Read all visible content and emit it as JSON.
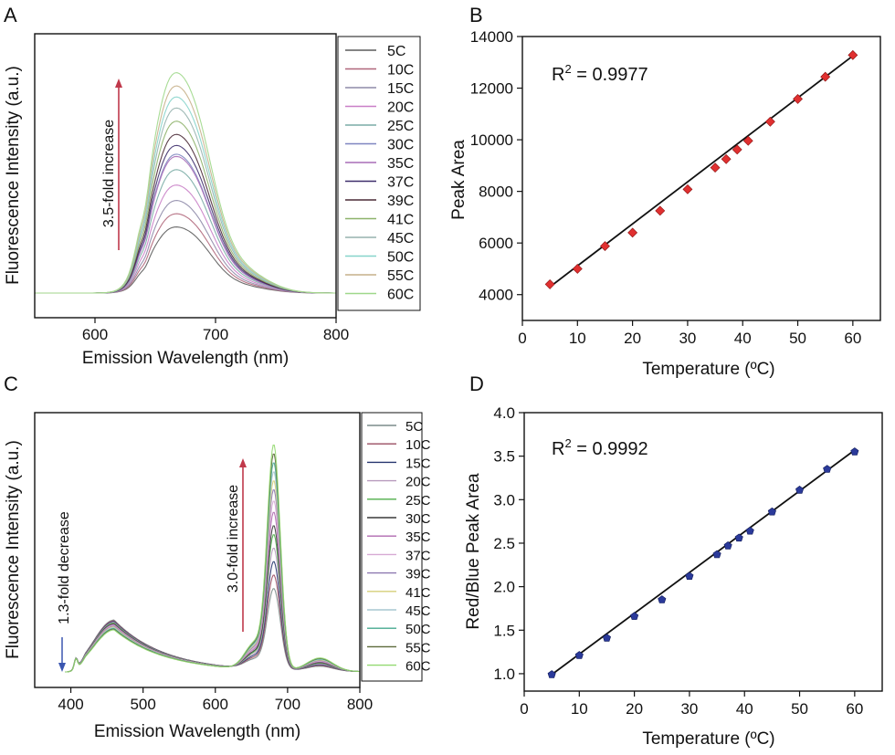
{
  "figure": {
    "colors": {
      "axis": "#111111",
      "fit_line": "#111111",
      "marker_b": "#e03030",
      "marker_d": "#2b3a9a",
      "arrow_red": "#c0394b",
      "arrow_blue": "#3a55b0"
    }
  },
  "chart_data": [
    {
      "panel": "A",
      "type": "line",
      "xlabel": "Emission Wavelength (nm)",
      "ylabel": "Fluorescence Intensity (a.u.)",
      "xlim": [
        550,
        800
      ],
      "xticks": [
        600,
        700,
        800
      ],
      "ylim": [
        0,
        1.0
      ],
      "annotation": "3.5-fold increase",
      "legend_position": "right",
      "series": [
        {
          "name": "5C",
          "color": "#5c5c5c",
          "peak": 0.3
        },
        {
          "name": "10C",
          "color": "#b0667a",
          "peak": 0.36
        },
        {
          "name": "15C",
          "color": "#8e8aa8",
          "peak": 0.42
        },
        {
          "name": "20C",
          "color": "#c97fc7",
          "peak": 0.49
        },
        {
          "name": "25C",
          "color": "#7aaca5",
          "peak": 0.56
        },
        {
          "name": "30C",
          "color": "#7e86c0",
          "peak": 0.63
        },
        {
          "name": "35C",
          "color": "#a86db7",
          "peak": 0.62
        },
        {
          "name": "37C",
          "color": "#3e2f6c",
          "peak": 0.67
        },
        {
          "name": "39C",
          "color": "#4a2a36",
          "peak": 0.72
        },
        {
          "name": "41C",
          "color": "#8eb36a",
          "peak": 0.78
        },
        {
          "name": "45C",
          "color": "#96b2ae",
          "peak": 0.84
        },
        {
          "name": "50C",
          "color": "#86d4cb",
          "peak": 0.89
        },
        {
          "name": "55C",
          "color": "#c6b08a",
          "peak": 0.94
        },
        {
          "name": "60C",
          "color": "#9fd88a",
          "peak": 1.0
        }
      ]
    },
    {
      "panel": "B",
      "type": "scatter",
      "xlabel": "Temperature (ºC)",
      "ylabel": "Peak Area",
      "xlim": [
        0,
        65
      ],
      "ylim": [
        3000,
        14000
      ],
      "xticks": [
        0,
        10,
        20,
        30,
        40,
        50,
        60
      ],
      "yticks": [
        4000,
        6000,
        8000,
        10000,
        12000,
        14000
      ],
      "x": [
        5,
        10,
        15,
        20,
        25,
        30,
        35,
        37,
        39,
        41,
        45,
        50,
        55,
        60
      ],
      "y": [
        4400,
        5000,
        5880,
        6400,
        7250,
        8080,
        8920,
        9250,
        9620,
        9960,
        10700,
        11580,
        12440,
        13280
      ],
      "fit": {
        "x": [
          5,
          60
        ],
        "y": [
          4300,
          13250
        ]
      },
      "annotation": {
        "r2_prefix": "R",
        "r2_exp": "2",
        "r2_value": " = 0.9977"
      }
    },
    {
      "panel": "C",
      "type": "line",
      "xlabel": "Emission Wavelength (nm)",
      "ylabel": "Fluorescence Intensity (a.u.)",
      "xlim": [
        350,
        800
      ],
      "xticks": [
        400,
        500,
        600,
        700,
        800
      ],
      "ylim": [
        0,
        1.0
      ],
      "annotations": [
        "1.3-fold decrease",
        "3.0-fold increase"
      ],
      "legend_position": "right",
      "series": [
        {
          "name": "5C",
          "color": "#7c8c8a",
          "peak": 0.36
        },
        {
          "name": "10C",
          "color": "#9a4d61",
          "peak": 0.42
        },
        {
          "name": "15C",
          "color": "#27366f",
          "peak": 0.48
        },
        {
          "name": "20C",
          "color": "#b79abd",
          "peak": 0.54
        },
        {
          "name": "25C",
          "color": "#4fae4a",
          "peak": 0.6
        },
        {
          "name": "30C",
          "color": "#3a3a3a",
          "peak": 0.64
        },
        {
          "name": "35C",
          "color": "#b06ab0",
          "peak": 0.7
        },
        {
          "name": "37C",
          "color": "#d7a9d4",
          "peak": 0.75
        },
        {
          "name": "39C",
          "color": "#8d78b0",
          "peak": 0.8
        },
        {
          "name": "41C",
          "color": "#d6cf78",
          "peak": 0.84
        },
        {
          "name": "45C",
          "color": "#a7c7d0",
          "peak": 0.88
        },
        {
          "name": "50C",
          "color": "#46a88f",
          "peak": 0.92
        },
        {
          "name": "55C",
          "color": "#5c6a3a",
          "peak": 0.96
        },
        {
          "name": "60C",
          "color": "#93d970",
          "peak": 1.0
        }
      ]
    },
    {
      "panel": "D",
      "type": "scatter",
      "xlabel": "Temperature (ºC)",
      "ylabel": "Red/Blue Peak Area",
      "xlim": [
        0,
        65
      ],
      "ylim": [
        0.8,
        4.0
      ],
      "xticks": [
        0,
        10,
        20,
        30,
        40,
        50,
        60
      ],
      "yticks": [
        1.0,
        1.5,
        2.0,
        2.5,
        3.0,
        3.5,
        4.0
      ],
      "x": [
        5,
        10,
        15,
        20,
        25,
        30,
        35,
        37,
        39,
        41,
        45,
        50,
        55,
        60
      ],
      "y": [
        0.99,
        1.21,
        1.41,
        1.66,
        1.85,
        2.12,
        2.37,
        2.47,
        2.56,
        2.64,
        2.86,
        3.11,
        3.35,
        3.55
      ],
      "fit": {
        "x": [
          5,
          60
        ],
        "y": [
          0.99,
          3.57
        ]
      },
      "annotation": {
        "r2_prefix": "R",
        "r2_exp": "2",
        "r2_value": " = 0.9992"
      }
    }
  ],
  "panel_labels": [
    "A",
    "B",
    "C",
    "D"
  ]
}
